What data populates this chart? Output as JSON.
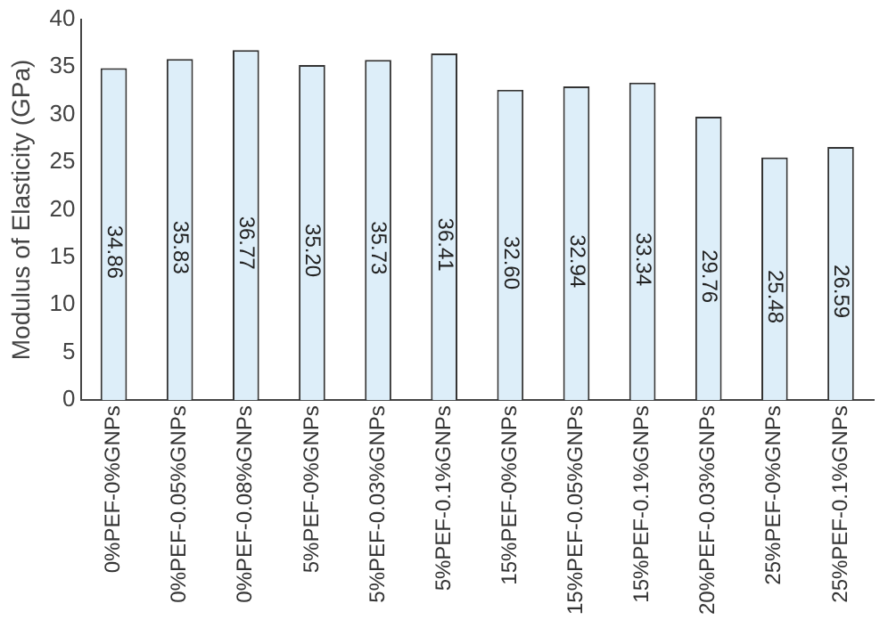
{
  "chart_data": {
    "type": "bar",
    "ylabel": "Modulus of Elasticity (GPa)",
    "categories": [
      "0%PEF-0%GNPs",
      "0%PEF-0.05%GNPs",
      "0%PEF-0.08%GNPs",
      "5%PEF-0%GNPs",
      "5%PEF-0.03%GNPs",
      "5%PEF-0.1%GNPs",
      "15%PEF-0%GNPs",
      "15%PEF-0.05%GNPs",
      "15%PEF-0.1%GNPs",
      "20%PEF-0.03%GNPs",
      "25%PEF-0%GNPs",
      "25%PEF-0.1%GNPs"
    ],
    "values": [
      34.86,
      35.83,
      36.77,
      35.2,
      35.73,
      36.41,
      32.6,
      32.94,
      33.34,
      29.76,
      25.48,
      26.59
    ],
    "value_labels": [
      "34.86",
      "35.83",
      "36.77",
      "35.20",
      "35.73",
      "36.41",
      "32.60",
      "32.94",
      "33.34",
      "29.76",
      "25.48",
      "26.59"
    ],
    "color": "#ddeef9",
    "ylim": [
      0,
      40
    ],
    "yticks": [
      0,
      5,
      10,
      15,
      20,
      25,
      30,
      35,
      40
    ],
    "grid": false,
    "legend": false
  }
}
